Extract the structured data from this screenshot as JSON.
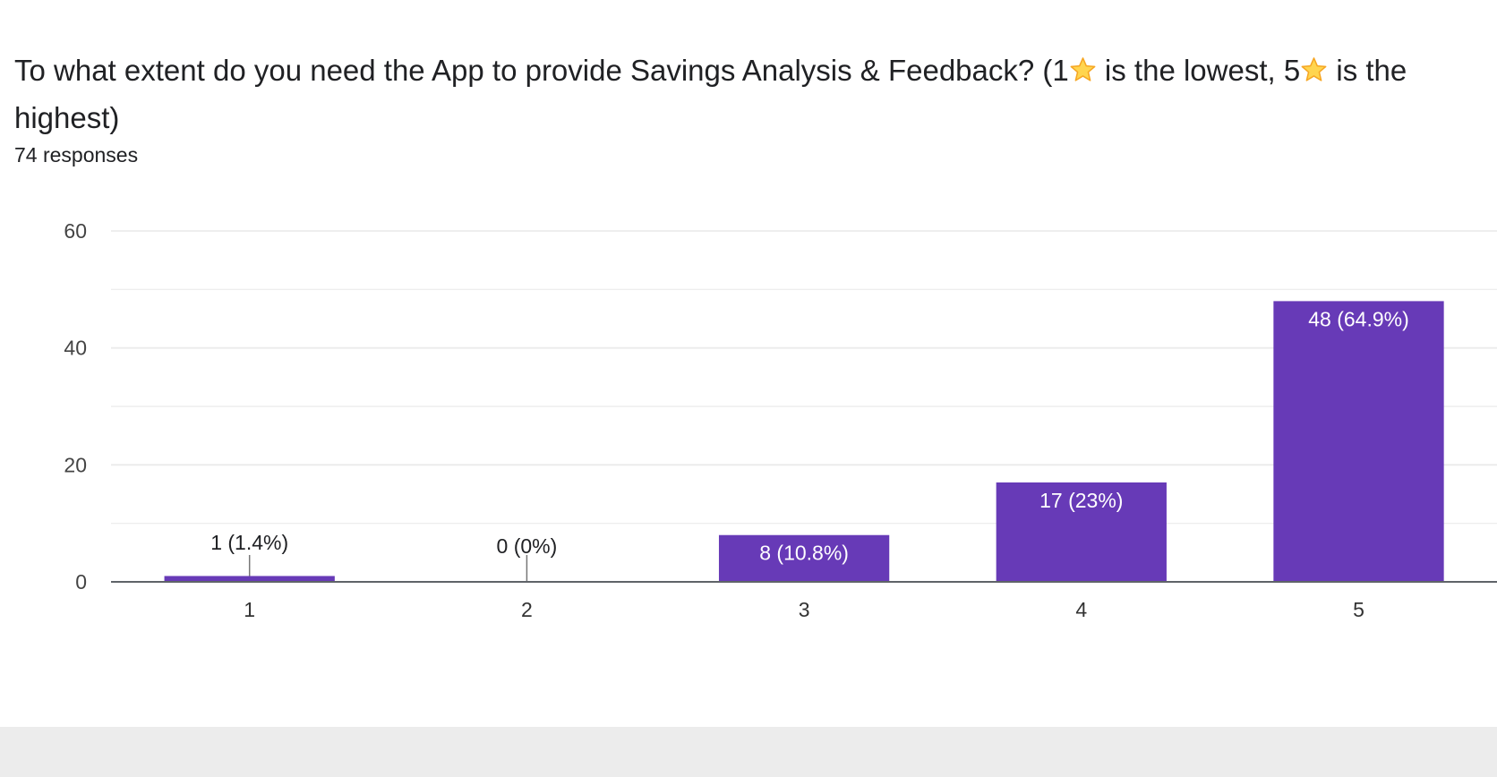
{
  "question": {
    "title_part1": "To what extent do you need the App to provide Savings Analysis & Feedback? (1",
    "title_part2": " is the lowest, 5",
    "title_part3": " is the highest)",
    "star_icon": "star-icon",
    "responses": "74 responses"
  },
  "colors": {
    "bar": "#673ab7",
    "grid": "#ebebeb",
    "axis": "#5f6368",
    "star_fill": "#ffd54f",
    "star_stroke": "#f6a623",
    "inside_label": "#ffffff",
    "outside_label": "#202124"
  },
  "chart_data": {
    "type": "bar",
    "title": "To what extent do you need the App to provide Savings Analysis & Feedback? (1⭐ is the lowest, 5⭐ is the highest)",
    "subtitle": "74 responses",
    "categories": [
      "1",
      "2",
      "3",
      "4",
      "5"
    ],
    "values": [
      1,
      0,
      8,
      17,
      48
    ],
    "data_labels": [
      "1 (1.4%)",
      "0 (0%)",
      "8 (10.8%)",
      "17 (23%)",
      "48 (64.9%)"
    ],
    "y_ticks": [
      "0",
      "20",
      "40",
      "60"
    ],
    "ylim": [
      0,
      60
    ],
    "grid": true,
    "minor_grid": true,
    "legend": "none",
    "xlabel": "",
    "ylabel": ""
  }
}
